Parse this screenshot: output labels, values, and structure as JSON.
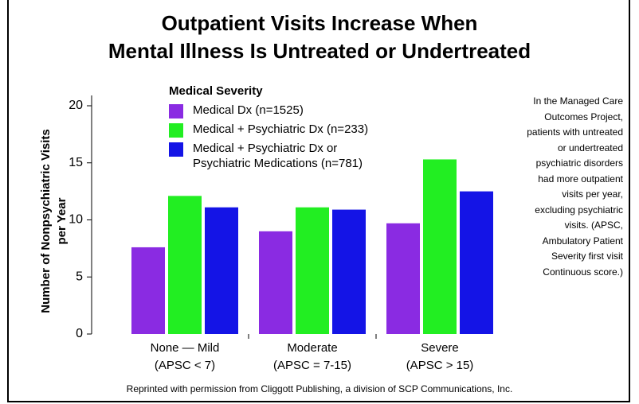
{
  "chart_data": {
    "type": "bar",
    "title": [
      "Outpatient Visits Increase When",
      "Mental Illness Is Untreated or Undertreated"
    ],
    "y_label": "Number of Nonpsychiatric Visits per Year",
    "legend_title": "Medical Severity",
    "categories": [
      [
        "None — Mild",
        "(APSC < 7)"
      ],
      [
        "Moderate",
        "(APSC = 7-15)"
      ],
      [
        "Severe",
        "(APSC > 15)"
      ]
    ],
    "series": [
      {
        "name": "Medical Dx (n=1525)",
        "color": "#8a2be2",
        "values": [
          7.6,
          9.0,
          9.7
        ]
      },
      {
        "name": "Medical + Psychiatric Dx (n=233)",
        "color": "#22ee22",
        "values": [
          12.1,
          11.1,
          15.3
        ]
      },
      {
        "name": "Medical + Psychiatric Dx or Psychiatric Medications (n=781)",
        "color": "#1414e6",
        "values": [
          11.1,
          10.9,
          12.5
        ]
      }
    ],
    "ylim": [
      0,
      20
    ],
    "yticks": [
      0,
      5,
      10,
      15,
      20
    ],
    "annotation": "In the Managed Care Outcomes Project, patients with untreated or undertreated psychiatric disorders had more outpatient visits per year, excluding psychiatric visits. (APSC, Ambulatory Patient Severity first visit Continuous score.)",
    "footer": "Reprinted with permission from Cliggott Publishing, a division of SCP Communications, Inc."
  }
}
